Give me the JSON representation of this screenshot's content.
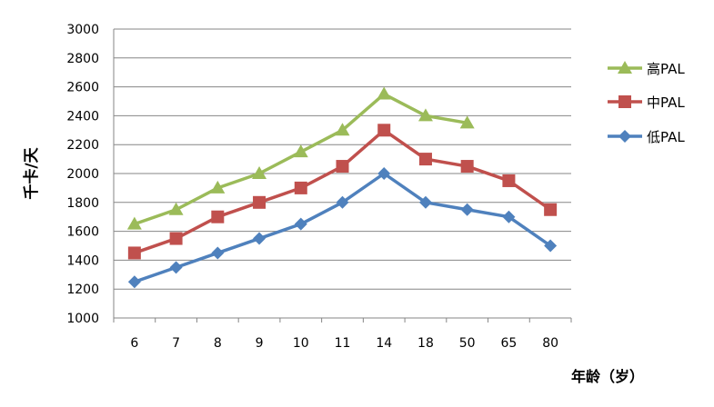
{
  "chart_data": {
    "type": "line",
    "title": "",
    "xlabel": "年龄（岁）",
    "ylabel": "千卡/天",
    "categories": [
      "6",
      "7",
      "8",
      "9",
      "10",
      "11",
      "14",
      "18",
      "50",
      "65",
      "80"
    ],
    "ylim": [
      1000,
      3000
    ],
    "yticks": [
      1000,
      1200,
      1400,
      1600,
      1800,
      2000,
      2200,
      2400,
      2600,
      2800,
      3000
    ],
    "grid": true,
    "legend_position": "right",
    "series": [
      {
        "name": "高PAL",
        "color": "#9BBB59",
        "marker": "triangle",
        "values": [
          1650,
          1750,
          1900,
          2000,
          2150,
          2300,
          2550,
          2400,
          2350,
          null,
          null
        ]
      },
      {
        "name": "中PAL",
        "color": "#C0504D",
        "marker": "square",
        "values": [
          1450,
          1550,
          1700,
          1800,
          1900,
          2050,
          2300,
          2100,
          2050,
          1950,
          1750
        ]
      },
      {
        "name": "低PAL",
        "color": "#4F81BD",
        "marker": "diamond",
        "values": [
          1250,
          1350,
          1450,
          1550,
          1650,
          1800,
          2000,
          1800,
          1750,
          1700,
          1500
        ]
      }
    ]
  }
}
